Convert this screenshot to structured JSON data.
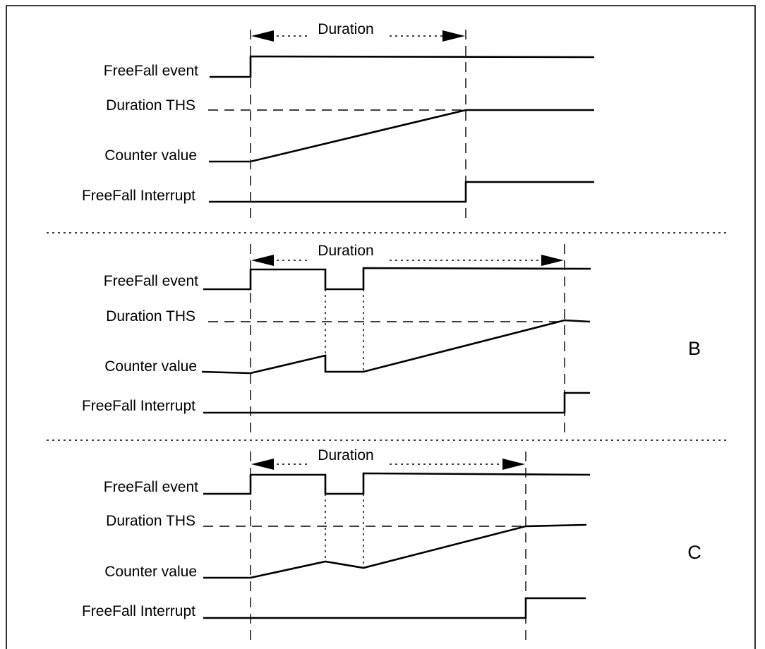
{
  "panels": [
    {
      "id": "a",
      "letter": "",
      "duration_label": "Duration",
      "signals": [
        "FreeFall event",
        "Duration THS",
        "Counter value",
        "FreeFall Interrupt"
      ]
    },
    {
      "id": "b",
      "letter": "B",
      "duration_label": "Duration",
      "signals": [
        "FreeFall event",
        "Duration THS",
        "Counter value",
        "FreeFall Interrupt"
      ]
    },
    {
      "id": "c",
      "letter": "C",
      "duration_label": "Duration",
      "signals": [
        "FreeFall event",
        "Duration THS",
        "Counter value",
        "FreeFall Interrupt"
      ]
    }
  ]
}
